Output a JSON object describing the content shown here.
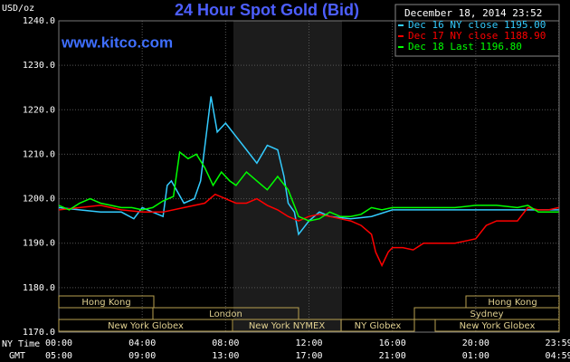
{
  "chart_data": {
    "type": "line",
    "title": "24 Hour Spot Gold (Bid)",
    "y_label": "USD/oz",
    "website": "www.kitco.com",
    "timestamp": "December 18, 2014 23:52",
    "x_row_labels": [
      "NY Time",
      "GMT"
    ],
    "xlim": [
      0,
      24
    ],
    "ylim": [
      1170,
      1240
    ],
    "grid": true,
    "yticks": [
      {
        "value": 1170,
        "label": "1170.0"
      },
      {
        "value": 1180,
        "label": "1180.0"
      },
      {
        "value": 1190,
        "label": "1190.0"
      },
      {
        "value": 1200,
        "label": "1200.0"
      },
      {
        "value": 1210,
        "label": "1210.0"
      },
      {
        "value": 1220,
        "label": "1220.0"
      },
      {
        "value": 1230,
        "label": "1230.0"
      },
      {
        "value": 1240,
        "label": "1240.0"
      }
    ],
    "xticks": [
      {
        "value": 0,
        "label": "00:00"
      },
      {
        "value": 4,
        "label": "04:00"
      },
      {
        "value": 8,
        "label": "08:00"
      },
      {
        "value": 12,
        "label": "12:00"
      },
      {
        "value": 16,
        "label": "16:00"
      },
      {
        "value": 20,
        "label": "20:00"
      },
      {
        "value": 23.983,
        "label": "23:59"
      }
    ],
    "gmt_ticks": [
      {
        "value": 0,
        "label": "05:00"
      },
      {
        "value": 4,
        "label": "09:00"
      },
      {
        "value": 8,
        "label": "13:00"
      },
      {
        "value": 12,
        "label": "17:00"
      },
      {
        "value": 16,
        "label": "21:00"
      },
      {
        "value": 20,
        "label": "01:00"
      },
      {
        "value": 23.983,
        "label": "04:59"
      }
    ],
    "sessions": [
      "Hong Kong",
      "Hong Kong",
      "London",
      "Sydney",
      "New York Globex",
      "New York NYMEX",
      "NY Globex",
      "New York Globex"
    ],
    "series": [
      {
        "name": "Dec 16 NY close 1195.00",
        "color": "#33ccff",
        "x": [
          0,
          1,
          2,
          3,
          3.6,
          4,
          4.5,
          5,
          5.2,
          5.4,
          6,
          6.5,
          6.8,
          7.3,
          7.6,
          8,
          8.5,
          9,
          9.5,
          10,
          10.5,
          10.8,
          11,
          11.3,
          11.5,
          12,
          12.5,
          13,
          14,
          15,
          16,
          18,
          20,
          22,
          23.983
        ],
        "values": [
          1198,
          1197.5,
          1197,
          1197,
          1195.5,
          1198,
          1197,
          1196,
          1203,
          1204,
          1199,
          1200,
          1204,
          1223,
          1215,
          1217,
          1214,
          1211,
          1208,
          1212,
          1211,
          1205,
          1199,
          1197,
          1192,
          1195,
          1197,
          1196,
          1195.5,
          1196,
          1197.5,
          1197.5,
          1197.5,
          1197.5,
          1197.5
        ]
      },
      {
        "name": "Dec 17 NY close 1188.90",
        "color": "#ff0000",
        "x": [
          0,
          1,
          2,
          3,
          4,
          5,
          6,
          7,
          7.5,
          8,
          8.5,
          9,
          9.5,
          10,
          10.5,
          11,
          11.5,
          12,
          12.5,
          13,
          13.5,
          14,
          14.5,
          15,
          15.2,
          15.5,
          15.8,
          16,
          16.5,
          17,
          17.5,
          18,
          18.5,
          19,
          19.5,
          20,
          20.5,
          21,
          21.5,
          22,
          22.5,
          23,
          23.5,
          23.983
        ],
        "values": [
          1197.5,
          1198,
          1198.5,
          1197.5,
          1197,
          1197,
          1198,
          1199,
          1201,
          1200,
          1199,
          1199,
          1200,
          1198.5,
          1197.5,
          1196,
          1195,
          1196,
          1196.5,
          1196,
          1195.5,
          1195,
          1194,
          1192,
          1188,
          1185,
          1188,
          1189,
          1189,
          1188.5,
          1190,
          1190,
          1190,
          1190,
          1190.5,
          1191,
          1194,
          1195,
          1195,
          1195,
          1198,
          1197.5,
          1197.5,
          1198
        ]
      },
      {
        "name": "Dec 18 Last 1196.80",
        "color": "#00ff00",
        "x": [
          0,
          0.5,
          1,
          1.5,
          2,
          2.5,
          3,
          3.5,
          4,
          4.5,
          5,
          5.5,
          5.8,
          6.2,
          6.6,
          7,
          7.4,
          7.8,
          8.2,
          8.5,
          9,
          9.5,
          10,
          10.5,
          11,
          11.5,
          12,
          12.5,
          13,
          13.5,
          14,
          14.5,
          15,
          15.5,
          16,
          17,
          18,
          19,
          20,
          21,
          22,
          22.5,
          23,
          23.983
        ],
        "values": [
          1198.5,
          1197.5,
          1199,
          1200,
          1199,
          1198.5,
          1198,
          1198,
          1197.5,
          1198,
          1199.5,
          1200.5,
          1210.5,
          1209,
          1210,
          1207,
          1203,
          1206,
          1204,
          1203,
          1206,
          1204,
          1202,
          1205,
          1202,
          1196,
          1195,
          1195.5,
          1197,
          1196,
          1196,
          1196.5,
          1198,
          1197.5,
          1198,
          1198,
          1198,
          1198,
          1198.5,
          1198.5,
          1198,
          1198.5,
          1197,
          1197
        ]
      }
    ]
  }
}
